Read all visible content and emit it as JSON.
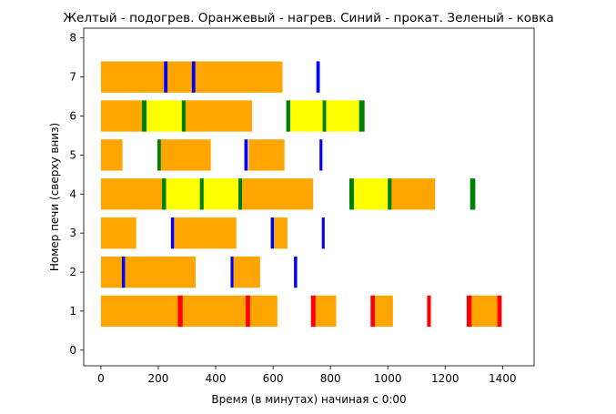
{
  "chart_data": {
    "type": "bar",
    "orientation": "horizontal",
    "title": "Желтый - подогрев. Оранжевый - нагрев. Синий - прокат. Зеленый - ковка",
    "xlabel": "Время (в минутах) начиная с 0:00",
    "ylabel": "Номер печи (сверху вниз)",
    "xlim": [
      -60,
      1510
    ],
    "ylim": [
      -0.4,
      8.25
    ],
    "xticks": [
      "0",
      "200",
      "400",
      "600",
      "800",
      "1000",
      "1200",
      "1400"
    ],
    "yticks": [
      "0",
      "1",
      "2",
      "3",
      "4",
      "5",
      "6",
      "7",
      "8"
    ],
    "bar_height": 0.8,
    "colors": {
      "heating": "#ffa500",
      "preheat": "#ffff00",
      "rolling": "#0000ff",
      "forging": "#008000",
      "marker": "#ff0000"
    },
    "series": [
      {
        "name": "Оранжевый - нагрев",
        "color": "#ffa500",
        "segments": [
          {
            "y": 1,
            "start": 0,
            "end": 615
          },
          {
            "y": 1,
            "start": 745,
            "end": 820
          },
          {
            "y": 1,
            "start": 950,
            "end": 1018
          },
          {
            "y": 1,
            "start": 1290,
            "end": 1390
          },
          {
            "y": 2,
            "start": 0,
            "end": 330
          },
          {
            "y": 2,
            "start": 462,
            "end": 555
          },
          {
            "y": 3,
            "start": 0,
            "end": 123
          },
          {
            "y": 3,
            "start": 255,
            "end": 472
          },
          {
            "y": 3,
            "start": 603,
            "end": 650
          },
          {
            "y": 4,
            "start": 0,
            "end": 215
          },
          {
            "y": 4,
            "start": 490,
            "end": 740
          },
          {
            "y": 4,
            "start": 1010,
            "end": 1165
          },
          {
            "y": 5,
            "start": 0,
            "end": 75
          },
          {
            "y": 5,
            "start": 205,
            "end": 383
          },
          {
            "y": 5,
            "start": 515,
            "end": 640
          },
          {
            "y": 6,
            "start": 0,
            "end": 143
          },
          {
            "y": 6,
            "start": 293,
            "end": 527
          },
          {
            "y": 7,
            "start": 0,
            "end": 633
          }
        ]
      },
      {
        "name": "Желтый - подогрев",
        "color": "#ffff00",
        "segments": [
          {
            "y": 4,
            "start": 225,
            "end": 352
          },
          {
            "y": 4,
            "start": 357,
            "end": 487
          },
          {
            "y": 4,
            "start": 880,
            "end": 1005
          },
          {
            "y": 6,
            "start": 157,
            "end": 286
          },
          {
            "y": 6,
            "start": 658,
            "end": 776
          },
          {
            "y": 6,
            "start": 782,
            "end": 907
          }
        ]
      },
      {
        "name": "Синий - прокат",
        "color": "#0000ff",
        "segments": [
          {
            "y": 2,
            "start": 73,
            "end": 84
          },
          {
            "y": 2,
            "start": 452,
            "end": 462
          },
          {
            "y": 2,
            "start": 673,
            "end": 684
          },
          {
            "y": 3,
            "start": 244,
            "end": 255
          },
          {
            "y": 3,
            "start": 592,
            "end": 603
          },
          {
            "y": 3,
            "start": 770,
            "end": 780
          },
          {
            "y": 5,
            "start": 500,
            "end": 512
          },
          {
            "y": 5,
            "start": 762,
            "end": 772
          },
          {
            "y": 7,
            "start": 220,
            "end": 232
          },
          {
            "y": 7,
            "start": 317,
            "end": 329
          },
          {
            "y": 7,
            "start": 751,
            "end": 763
          }
        ]
      },
      {
        "name": "Зеленый - ковка",
        "color": "#008000",
        "segments": [
          {
            "y": 4,
            "start": 213,
            "end": 227
          },
          {
            "y": 4,
            "start": 345,
            "end": 358
          },
          {
            "y": 4,
            "start": 479,
            "end": 492
          },
          {
            "y": 4,
            "start": 866,
            "end": 882
          },
          {
            "y": 4,
            "start": 1000,
            "end": 1013
          },
          {
            "y": 4,
            "start": 1287,
            "end": 1305
          },
          {
            "y": 5,
            "start": 197,
            "end": 209
          },
          {
            "y": 6,
            "start": 143,
            "end": 159
          },
          {
            "y": 6,
            "start": 282,
            "end": 295
          },
          {
            "y": 6,
            "start": 646,
            "end": 660
          },
          {
            "y": 6,
            "start": 773,
            "end": 785
          },
          {
            "y": 6,
            "start": 900,
            "end": 919
          }
        ]
      },
      {
        "color": "#ff0000",
        "segments": [
          {
            "y": 1,
            "start": 268,
            "end": 285
          },
          {
            "y": 1,
            "start": 505,
            "end": 520
          },
          {
            "y": 1,
            "start": 732,
            "end": 748
          },
          {
            "y": 1,
            "start": 940,
            "end": 955
          },
          {
            "y": 1,
            "start": 1137,
            "end": 1150
          },
          {
            "y": 1,
            "start": 1275,
            "end": 1292
          },
          {
            "y": 1,
            "start": 1382,
            "end": 1397
          }
        ]
      }
    ]
  }
}
